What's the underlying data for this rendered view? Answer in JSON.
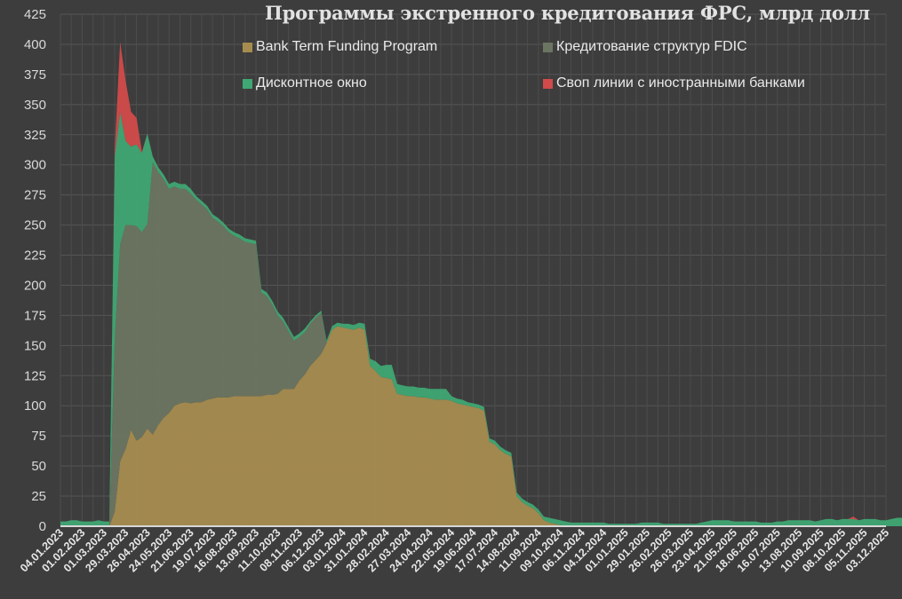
{
  "chart_data": {
    "type": "area",
    "stacked": true,
    "title": "Программы экстренного кредитования ФРС, млрд долл",
    "xlabel": "",
    "ylabel": "",
    "ylim": [
      0,
      425
    ],
    "yticks": [
      0,
      25,
      50,
      75,
      100,
      125,
      150,
      175,
      200,
      225,
      250,
      275,
      300,
      325,
      350,
      375,
      400,
      425
    ],
    "grid": true,
    "legend_position": "top",
    "x_tick_labels": [
      "04.01.2023",
      "01.02.2023",
      "01.03.2023",
      "29.03.2023",
      "26.04.2023",
      "24.05.2023",
      "21.06.2023",
      "19.07.2023",
      "16.08.2023",
      "13.09.2023",
      "11.10.2023",
      "08.11.2023",
      "06.12.2023",
      "03.01.2024",
      "31.01.2024",
      "28.02.2024",
      "27.03.2024",
      "24.04.2024",
      "22.05.2024",
      "19.06.2024",
      "17.07.2024",
      "14.08.2024",
      "11.09.2024",
      "09.10.2024",
      "06.11.2024",
      "04.12.2024",
      "01.01.2025",
      "29.01.2025",
      "26.02.2025",
      "26.03.2025",
      "23.04.2025",
      "21.05.2025",
      "18.06.2025",
      "16.07.2025",
      "13.08.2025",
      "10.09.2025",
      "08.10.2025",
      "05.11.2025",
      "03.12.2025"
    ],
    "x_frequency": "weekly, starting 04.01.2023",
    "series": [
      {
        "name": "Bank Term Funding Program",
        "color": "#a68c4f",
        "values": [
          0,
          0,
          0,
          0,
          0,
          0,
          0,
          0,
          0,
          0,
          12,
          54,
          64,
          80,
          71,
          74,
          81,
          76,
          84,
          90,
          94,
          100,
          102,
          103,
          102,
          103,
          103,
          105,
          106,
          107,
          107,
          107,
          108,
          108,
          108,
          108,
          108,
          108,
          109,
          109,
          110,
          114,
          114,
          114,
          121,
          126,
          133,
          138,
          143,
          152,
          163,
          166,
          165,
          164,
          163,
          165,
          163,
          133,
          129,
          124,
          123,
          122,
          110,
          109,
          108,
          108,
          107,
          107,
          106,
          105,
          105,
          105,
          104,
          102,
          101,
          100,
          99,
          98,
          96,
          70,
          68,
          63,
          60,
          58,
          25,
          20,
          17,
          15,
          11,
          5,
          3,
          2,
          1,
          0,
          0,
          0,
          0,
          0,
          0,
          0,
          0,
          0,
          0,
          0,
          0,
          0,
          0,
          0,
          0,
          0,
          0,
          0,
          0,
          0,
          0,
          0,
          0,
          0,
          0,
          0,
          0,
          0,
          0,
          0,
          0,
          0,
          0,
          0,
          0,
          0,
          0,
          0,
          0,
          0,
          0,
          0,
          0,
          0,
          0,
          0,
          0,
          0,
          0,
          0,
          0,
          0,
          0,
          0,
          0,
          0,
          0,
          0,
          0,
          0,
          0,
          0
        ]
      },
      {
        "name": "Кредитование структур FDIC",
        "color": "#6b7561",
        "values": [
          0,
          0,
          0,
          0,
          0,
          0,
          0,
          0,
          0,
          0,
          143,
          180,
          186,
          170,
          178,
          170,
          170,
          226,
          210,
          198,
          186,
          182,
          178,
          177,
          174,
          168,
          164,
          158,
          150,
          146,
          142,
          137,
          133,
          131,
          128,
          127,
          126,
          86,
          82,
          75,
          65,
          56,
          48,
          40,
          36,
          35,
          35,
          35,
          34,
          0,
          0,
          0,
          0,
          0,
          0,
          0,
          0,
          0,
          0,
          0,
          0,
          0,
          0,
          0,
          0,
          0,
          0,
          0,
          0,
          0,
          0,
          0,
          0,
          0,
          0,
          0,
          0,
          0,
          0,
          0,
          0,
          0,
          0,
          0,
          0,
          0,
          0,
          0,
          0,
          0,
          0,
          0,
          0,
          0,
          0,
          0,
          0,
          0,
          0,
          0,
          0,
          0,
          0,
          0,
          0,
          0,
          0,
          0,
          0,
          0,
          0,
          0,
          0,
          0,
          0,
          0,
          0,
          0,
          0,
          0,
          0,
          0,
          0,
          0,
          0,
          0,
          0,
          0,
          0,
          0,
          0,
          0,
          0,
          0,
          0,
          0,
          0,
          0,
          0,
          0,
          0,
          0,
          0,
          0,
          0,
          0,
          0,
          0,
          0,
          0,
          0,
          0,
          0,
          0,
          0,
          0
        ]
      },
      {
        "name": "Дисконтное окно",
        "color": "#3fa773",
        "values": [
          4,
          4,
          5,
          5,
          4,
          4,
          4,
          5,
          4,
          4,
          152,
          110,
          70,
          65,
          68,
          66,
          75,
          5,
          4,
          4,
          4,
          4,
          4,
          4,
          4,
          3,
          3,
          3,
          3,
          3,
          3,
          3,
          3,
          3,
          3,
          3,
          3,
          3,
          3,
          3,
          3,
          3,
          3,
          3,
          3,
          3,
          2,
          2,
          2,
          2,
          3,
          3,
          3,
          4,
          4,
          4,
          5,
          6,
          8,
          9,
          11,
          12,
          8,
          8,
          8,
          8,
          8,
          8,
          8,
          9,
          9,
          9,
          4,
          4,
          4,
          3,
          3,
          3,
          3,
          3,
          3,
          3,
          3,
          3,
          3,
          3,
          3,
          3,
          3,
          3,
          4,
          4,
          4,
          4,
          3,
          3,
          3,
          3,
          3,
          3,
          3,
          2,
          2,
          2,
          2,
          2,
          2,
          3,
          3,
          3,
          3,
          2,
          2,
          2,
          2,
          2,
          2,
          2,
          3,
          4,
          5,
          5,
          5,
          5,
          4,
          4,
          4,
          4,
          4,
          3,
          3,
          3,
          4,
          4,
          5,
          5,
          5,
          5,
          5,
          4,
          5,
          6,
          6,
          5,
          6,
          6,
          6,
          5,
          6,
          6,
          6,
          5,
          5,
          6,
          7,
          7
        ]
      },
      {
        "name": "Своп линии с иностранными банками",
        "color": "#d24a4a",
        "values": [
          0,
          0,
          0,
          0,
          0,
          0,
          0,
          0,
          0,
          0,
          5,
          58,
          50,
          29,
          22,
          1,
          0,
          0,
          0,
          0,
          0,
          0,
          0,
          0,
          0,
          0,
          0,
          0,
          0,
          0,
          0,
          0,
          0,
          0,
          0,
          0,
          0,
          0,
          0,
          0,
          0,
          0,
          0,
          0,
          0,
          0,
          0,
          0,
          0,
          0,
          0,
          0,
          0,
          0,
          0,
          0,
          0,
          0,
          0,
          0,
          0,
          0,
          0,
          0,
          0,
          0,
          0,
          0,
          0,
          0,
          0,
          0,
          0,
          0,
          0,
          0,
          0,
          0,
          0,
          0,
          0,
          0,
          0,
          0,
          0,
          0,
          0,
          0,
          0,
          0,
          0,
          0,
          0,
          0,
          0,
          0,
          0,
          0,
          0,
          0,
          0,
          0,
          0,
          0,
          0,
          0,
          0,
          0,
          0,
          0,
          0,
          0,
          0,
          0,
          0,
          0,
          0,
          0,
          0,
          0,
          0,
          0,
          0,
          0,
          0,
          0,
          0,
          0,
          0,
          0,
          0,
          0,
          0,
          0,
          0,
          0,
          0,
          0,
          0,
          0,
          0,
          0,
          0,
          0,
          0,
          0,
          2,
          0,
          0,
          0,
          0,
          0,
          0,
          0,
          0,
          0
        ]
      }
    ]
  },
  "legend": {
    "items": [
      {
        "label": "Bank Term Funding Program",
        "color": "#a68c4f"
      },
      {
        "label": "Кредитование структур FDIC",
        "color": "#6b7561"
      },
      {
        "label": "Дисконтное окно",
        "color": "#3fa773"
      },
      {
        "label": "Своп линии с иностранными банками",
        "color": "#d24a4a"
      }
    ]
  },
  "colors": {
    "background": "#3d3d3d",
    "grid": "#555555",
    "axis": "#d8d8d8"
  }
}
